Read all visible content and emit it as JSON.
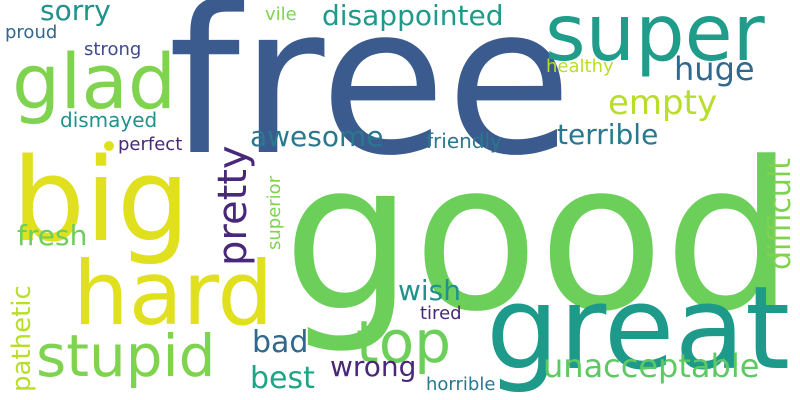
{
  "words": [
    {
      "text": "free",
      "color": "#3b5b8f"
    },
    {
      "text": "good",
      "color": "#6ccf5a"
    },
    {
      "text": "big",
      "color": "#e0e01f"
    },
    {
      "text": "great",
      "color": "#1e9a8a"
    },
    {
      "text": "hard",
      "color": "#e0e01f"
    },
    {
      "text": "super",
      "color": "#1f9d8a"
    },
    {
      "text": "glad",
      "color": "#7fd34e"
    },
    {
      "text": "stupid",
      "color": "#7fd34e"
    },
    {
      "text": "top",
      "color": "#6ccf5a"
    },
    {
      "text": "pretty",
      "color": "#482878"
    },
    {
      "text": "difficult",
      "color": "#7fd34e"
    },
    {
      "text": "disappointed",
      "color": "#1f9a8a"
    },
    {
      "text": "empty",
      "color": "#b8de29"
    },
    {
      "text": "huge",
      "color": "#31688e"
    },
    {
      "text": "unacceptable",
      "color": "#5ec962"
    },
    {
      "text": "awesome",
      "color": "#2a788e"
    },
    {
      "text": "terrible",
      "color": "#2a788e"
    },
    {
      "text": "sorry",
      "color": "#21918c"
    },
    {
      "text": "best",
      "color": "#20a486"
    },
    {
      "text": "bad",
      "color": "#31688e"
    },
    {
      "text": "wrong",
      "color": "#482878"
    },
    {
      "text": "fresh",
      "color": "#6ccf5a"
    },
    {
      "text": "wish",
      "color": "#21918c"
    },
    {
      "text": "pathetic",
      "color": "#b8de29"
    },
    {
      "text": "dismayed",
      "color": "#21918c"
    },
    {
      "text": "healthy",
      "color": "#b8de29"
    },
    {
      "text": "friendly",
      "color": "#2a788e"
    },
    {
      "text": "strong",
      "color": "#3e4a89"
    },
    {
      "text": "proud",
      "color": "#31688e"
    },
    {
      "text": "perfect",
      "color": "#482878"
    },
    {
      "text": "superior",
      "color": "#7fd34e"
    },
    {
      "text": "horrible",
      "color": "#2a788e"
    },
    {
      "text": "tired",
      "color": "#482878"
    },
    {
      "text": "vile",
      "color": "#7fd34e"
    }
  ]
}
